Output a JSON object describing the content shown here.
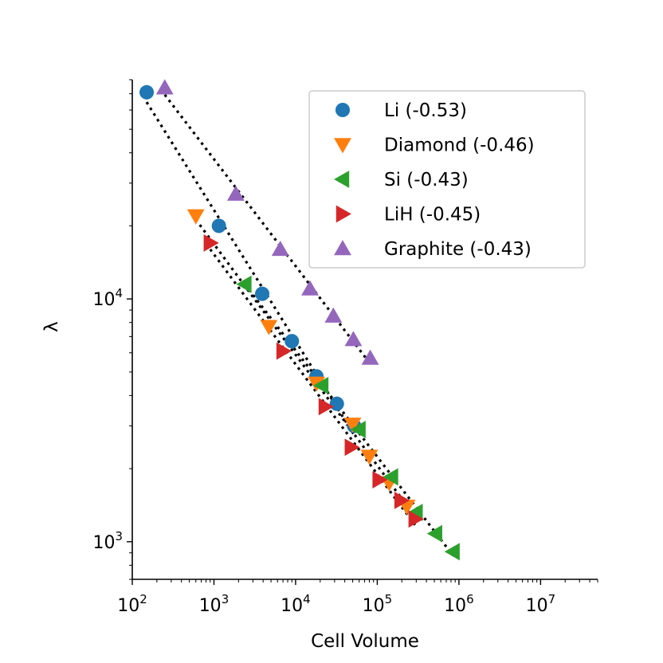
{
  "chart_data": {
    "type": "scatter",
    "xscale": "log",
    "yscale": "log",
    "xlabel": "Cell Volume",
    "ylabel": "λ",
    "xlim": [
      100,
      50000000
    ],
    "ylim": [
      700,
      80000
    ],
    "xticks": [
      {
        "value": 100,
        "base": "10",
        "exp": "2"
      },
      {
        "value": 1000,
        "base": "10",
        "exp": "3"
      },
      {
        "value": 10000,
        "base": "10",
        "exp": "4"
      },
      {
        "value": 100000,
        "base": "10",
        "exp": "5"
      },
      {
        "value": 1000000,
        "base": "10",
        "exp": "6"
      },
      {
        "value": 10000000,
        "base": "10",
        "exp": "7"
      }
    ],
    "yticks": [
      {
        "value": 1000,
        "base": "10",
        "exp": "3"
      },
      {
        "value": 10000,
        "base": "10",
        "exp": "4"
      }
    ],
    "legend_position": "top-right",
    "fit_line_style": "dotted black",
    "series": [
      {
        "name": "Li (-0.53)",
        "marker": "circle",
        "color": "#1f77b4",
        "x": [
          150,
          1150,
          3900,
          9000,
          18000,
          32000,
          52000
        ],
        "y": [
          71000,
          20000,
          10500,
          6700,
          4800,
          3700,
          3000
        ]
      },
      {
        "name": "Diamond (-0.46)",
        "marker": "triangle-down",
        "color": "#ff7f0e",
        "x": [
          600,
          4700,
          18000,
          50000,
          80000,
          140000,
          230000
        ],
        "y": [
          22000,
          7700,
          4500,
          3050,
          2250,
          1750,
          1400
        ]
      },
      {
        "name": "Si (-0.43)",
        "marker": "triangle-left",
        "color": "#2ca02c",
        "x": [
          2400,
          21000,
          60000,
          150000,
          300000,
          520000,
          850000
        ],
        "y": [
          11500,
          4400,
          2900,
          1850,
          1320,
          1080,
          910
        ]
      },
      {
        "name": "LiH (-0.45)",
        "marker": "triangle-right",
        "color": "#d62728",
        "x": [
          900,
          7000,
          23000,
          48000,
          105000,
          195000,
          290000
        ],
        "y": [
          17000,
          6100,
          3600,
          2450,
          1800,
          1480,
          1240
        ]
      },
      {
        "name": "Graphite (-0.43)",
        "marker": "triangle-up",
        "color": "#9467bd",
        "x": [
          250,
          1850,
          6500,
          15000,
          29000,
          51000,
          82000
        ],
        "y": [
          74000,
          27000,
          16000,
          11000,
          8500,
          6800,
          5700
        ]
      }
    ]
  }
}
